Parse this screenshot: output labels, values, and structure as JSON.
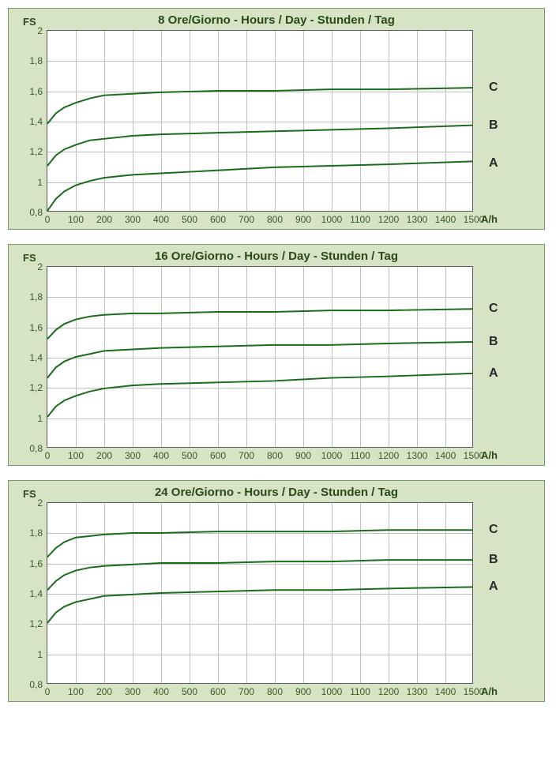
{
  "charts": [
    {
      "title": "8 Ore/Giorno - Hours / Day - Stunden / Tag",
      "title_fontsize": 15,
      "ylabel": "FS",
      "xlabel": "A/h",
      "background_color": "#d6e3c5",
      "plot_bg": "#ffffff",
      "grid_color": "#c0c0c0",
      "line_color": "#1a6b1a",
      "line_width": 2,
      "ylim": [
        0.8,
        2.0
      ],
      "xlim": [
        0,
        1500
      ],
      "ytick_step": 0.2,
      "yticks": [
        "0,8",
        "1",
        "1,2",
        "1,4",
        "1,6",
        "1,8",
        "2"
      ],
      "xtick_step": 100,
      "xticks": [
        "0",
        "100",
        "200",
        "300",
        "400",
        "500",
        "600",
        "700",
        "800",
        "900",
        "1000",
        "1100",
        "1200",
        "1300",
        "1400",
        "1500"
      ],
      "series": [
        {
          "label": "A",
          "label_y": 1.12,
          "points": [
            [
              0,
              0.8
            ],
            [
              30,
              0.88
            ],
            [
              60,
              0.93
            ],
            [
              100,
              0.97
            ],
            [
              150,
              1.0
            ],
            [
              200,
              1.02
            ],
            [
              300,
              1.04
            ],
            [
              400,
              1.05
            ],
            [
              600,
              1.07
            ],
            [
              800,
              1.09
            ],
            [
              1000,
              1.1
            ],
            [
              1200,
              1.11
            ],
            [
              1500,
              1.13
            ]
          ]
        },
        {
          "label": "B",
          "label_y": 1.37,
          "points": [
            [
              0,
              1.1
            ],
            [
              30,
              1.17
            ],
            [
              60,
              1.21
            ],
            [
              100,
              1.24
            ],
            [
              150,
              1.27
            ],
            [
              200,
              1.28
            ],
            [
              300,
              1.3
            ],
            [
              400,
              1.31
            ],
            [
              600,
              1.32
            ],
            [
              800,
              1.33
            ],
            [
              1000,
              1.34
            ],
            [
              1200,
              1.35
            ],
            [
              1500,
              1.37
            ]
          ]
        },
        {
          "label": "C",
          "label_y": 1.62,
          "points": [
            [
              0,
              1.38
            ],
            [
              30,
              1.45
            ],
            [
              60,
              1.49
            ],
            [
              100,
              1.52
            ],
            [
              150,
              1.55
            ],
            [
              200,
              1.57
            ],
            [
              300,
              1.58
            ],
            [
              400,
              1.59
            ],
            [
              600,
              1.6
            ],
            [
              800,
              1.6
            ],
            [
              1000,
              1.61
            ],
            [
              1200,
              1.61
            ],
            [
              1500,
              1.62
            ]
          ]
        }
      ]
    },
    {
      "title": "16 Ore/Giorno - Hours / Day - Stunden / Tag",
      "title_fontsize": 15,
      "ylabel": "FS",
      "xlabel": "A/h",
      "background_color": "#d6e3c5",
      "plot_bg": "#ffffff",
      "grid_color": "#c0c0c0",
      "line_color": "#1a6b1a",
      "line_width": 2,
      "ylim": [
        0.8,
        2.0
      ],
      "xlim": [
        0,
        1500
      ],
      "ytick_step": 0.2,
      "yticks": [
        "0,8",
        "1",
        "1,2",
        "1,4",
        "1,6",
        "1,8",
        "2"
      ],
      "xtick_step": 100,
      "xticks": [
        "0",
        "100",
        "200",
        "300",
        "400",
        "500",
        "600",
        "700",
        "800",
        "900",
        "1000",
        "1100",
        "1200",
        "1300",
        "1400",
        "1500"
      ],
      "series": [
        {
          "label": "A",
          "label_y": 1.29,
          "points": [
            [
              0,
              1.0
            ],
            [
              30,
              1.07
            ],
            [
              60,
              1.11
            ],
            [
              100,
              1.14
            ],
            [
              150,
              1.17
            ],
            [
              200,
              1.19
            ],
            [
              300,
              1.21
            ],
            [
              400,
              1.22
            ],
            [
              600,
              1.23
            ],
            [
              800,
              1.24
            ],
            [
              1000,
              1.26
            ],
            [
              1200,
              1.27
            ],
            [
              1500,
              1.29
            ]
          ]
        },
        {
          "label": "B",
          "label_y": 1.5,
          "points": [
            [
              0,
              1.26
            ],
            [
              30,
              1.33
            ],
            [
              60,
              1.37
            ],
            [
              100,
              1.4
            ],
            [
              150,
              1.42
            ],
            [
              200,
              1.44
            ],
            [
              300,
              1.45
            ],
            [
              400,
              1.46
            ],
            [
              600,
              1.47
            ],
            [
              800,
              1.48
            ],
            [
              1000,
              1.48
            ],
            [
              1200,
              1.49
            ],
            [
              1500,
              1.5
            ]
          ]
        },
        {
          "label": "C",
          "label_y": 1.72,
          "points": [
            [
              0,
              1.52
            ],
            [
              30,
              1.58
            ],
            [
              60,
              1.62
            ],
            [
              100,
              1.65
            ],
            [
              150,
              1.67
            ],
            [
              200,
              1.68
            ],
            [
              300,
              1.69
            ],
            [
              400,
              1.69
            ],
            [
              600,
              1.7
            ],
            [
              800,
              1.7
            ],
            [
              1000,
              1.71
            ],
            [
              1200,
              1.71
            ],
            [
              1500,
              1.72
            ]
          ]
        }
      ]
    },
    {
      "title": "24 Ore/Giorno - Hours / Day - Stunden / Tag",
      "title_fontsize": 15,
      "ylabel": "FS",
      "xlabel": "A/h",
      "background_color": "#d6e3c5",
      "plot_bg": "#ffffff",
      "grid_color": "#c0c0c0",
      "line_color": "#1a6b1a",
      "line_width": 2,
      "ylim": [
        0.8,
        2.0
      ],
      "xlim": [
        0,
        1500
      ],
      "ytick_step": 0.2,
      "yticks": [
        "0,8",
        "1",
        "1,2",
        "1,4",
        "1,6",
        "1,8",
        "2"
      ],
      "xtick_step": 100,
      "xticks": [
        "0",
        "100",
        "200",
        "300",
        "400",
        "500",
        "600",
        "700",
        "800",
        "900",
        "1000",
        "1100",
        "1200",
        "1300",
        "1400",
        "1500"
      ],
      "series": [
        {
          "label": "A",
          "label_y": 1.44,
          "points": [
            [
              0,
              1.2
            ],
            [
              30,
              1.27
            ],
            [
              60,
              1.31
            ],
            [
              100,
              1.34
            ],
            [
              150,
              1.36
            ],
            [
              200,
              1.38
            ],
            [
              300,
              1.39
            ],
            [
              400,
              1.4
            ],
            [
              600,
              1.41
            ],
            [
              800,
              1.42
            ],
            [
              1000,
              1.42
            ],
            [
              1200,
              1.43
            ],
            [
              1500,
              1.44
            ]
          ]
        },
        {
          "label": "B",
          "label_y": 1.62,
          "points": [
            [
              0,
              1.42
            ],
            [
              30,
              1.48
            ],
            [
              60,
              1.52
            ],
            [
              100,
              1.55
            ],
            [
              150,
              1.57
            ],
            [
              200,
              1.58
            ],
            [
              300,
              1.59
            ],
            [
              400,
              1.6
            ],
            [
              600,
              1.6
            ],
            [
              800,
              1.61
            ],
            [
              1000,
              1.61
            ],
            [
              1200,
              1.62
            ],
            [
              1500,
              1.62
            ]
          ]
        },
        {
          "label": "C",
          "label_y": 1.82,
          "points": [
            [
              0,
              1.64
            ],
            [
              30,
              1.7
            ],
            [
              60,
              1.74
            ],
            [
              100,
              1.77
            ],
            [
              150,
              1.78
            ],
            [
              200,
              1.79
            ],
            [
              300,
              1.8
            ],
            [
              400,
              1.8
            ],
            [
              600,
              1.81
            ],
            [
              800,
              1.81
            ],
            [
              1000,
              1.81
            ],
            [
              1200,
              1.82
            ],
            [
              1500,
              1.82
            ]
          ]
        }
      ]
    }
  ]
}
